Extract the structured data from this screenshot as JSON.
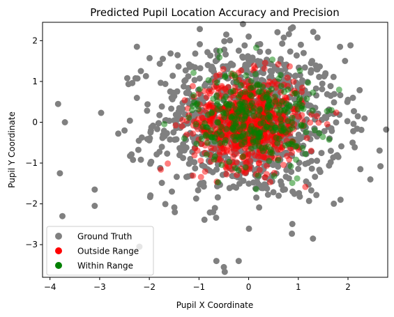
{
  "chart_data": {
    "type": "scatter",
    "title": "Predicted Pupil Location Accuracy and Precision",
    "xlabel": "Pupil X Coordinate",
    "ylabel": "Pupil Y Coordinate",
    "xlim": [
      -4.15,
      2.8
    ],
    "ylim": [
      -3.8,
      2.45
    ],
    "xticks": [
      -4,
      -3,
      -2,
      -1,
      0,
      1,
      2
    ],
    "yticks": [
      -3,
      -2,
      -1,
      0,
      1,
      2
    ],
    "grid": false,
    "legend_position": "lower-left",
    "series": [
      {
        "name": "Ground Truth",
        "color": "#808080",
        "opacity": 1.0,
        "count": 1000,
        "x_mean": 0.0,
        "x_std": 0.95,
        "y_mean": 0.0,
        "y_std": 0.95,
        "notable_points": [
          {
            "x": -3.7,
            "y": 0.0
          },
          {
            "x": -3.8,
            "y": -1.25
          },
          {
            "x": -3.75,
            "y": -2.3
          },
          {
            "x": -3.1,
            "y": -1.65
          },
          {
            "x": -3.1,
            "y": -2.05
          },
          {
            "x": -2.25,
            "y": 1.85
          },
          {
            "x": -2.2,
            "y": -3.05
          },
          {
            "x": -0.5,
            "y": -3.55
          },
          {
            "x": -0.65,
            "y": -3.4
          },
          {
            "x": -0.2,
            "y": -3.4
          },
          {
            "x": -0.45,
            "y": 2.15
          },
          {
            "x": 0.0,
            "y": 2.1
          },
          {
            "x": 2.45,
            "y": -1.4
          },
          {
            "x": 2.0,
            "y": 0.55
          },
          {
            "x": 1.85,
            "y": -1.9
          },
          {
            "x": 2.25,
            "y": -1.15
          },
          {
            "x": 1.05,
            "y": 1.9
          }
        ]
      },
      {
        "name": "Outside Range",
        "color": "#ff0000",
        "opacity": 0.5,
        "count": 700,
        "x_mean": 0.0,
        "x_std": 0.55,
        "y_mean": 0.0,
        "y_std": 0.55
      },
      {
        "name": "Within Range",
        "color": "#008000",
        "opacity": 0.5,
        "count": 300,
        "x_mean": 0.1,
        "x_std": 0.6,
        "y_mean": 0.1,
        "y_std": 0.6
      }
    ]
  }
}
